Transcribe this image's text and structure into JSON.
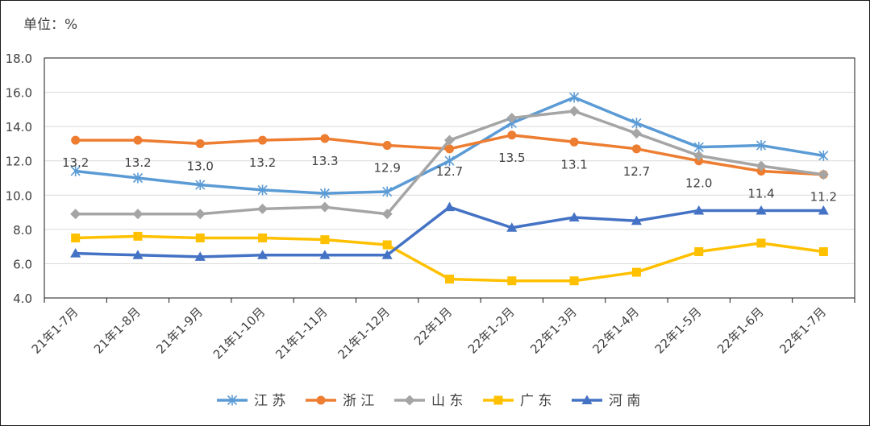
{
  "chart_data": {
    "type": "line",
    "unit_label": "单位：%",
    "categories": [
      "21年1-7月",
      "21年1-8月",
      "21年1-9月",
      "21年1-10月",
      "21年1-11月",
      "21年1-12月",
      "22年1月",
      "22年1-2月",
      "22年1-3月",
      "22年1-4月",
      "22年1-5月",
      "22年1-6月",
      "22年1-7月"
    ],
    "ylim": [
      4.0,
      18.0
    ],
    "yticks": [
      "4.0",
      "6.0",
      "8.0",
      "10.0",
      "12.0",
      "14.0",
      "16.0",
      "18.0"
    ],
    "grid": true,
    "legend_position": "bottom",
    "series": [
      {
        "name": "江 苏",
        "color": "#5b9bd5",
        "marker": "star",
        "values": [
          11.4,
          11.0,
          10.6,
          10.3,
          10.1,
          10.2,
          12.0,
          14.2,
          15.7,
          14.2,
          12.8,
          12.9,
          12.3
        ]
      },
      {
        "name": "浙 江",
        "color": "#ed7d31",
        "marker": "circle",
        "values": [
          13.2,
          13.2,
          13.0,
          13.2,
          13.3,
          12.9,
          12.7,
          13.5,
          13.1,
          12.7,
          12.0,
          11.4,
          11.2
        ],
        "labels": [
          "13.2",
          "13.2",
          "13.0",
          "13.2",
          "13.3",
          "12.9",
          "12.7",
          "13.5",
          "13.1",
          "12.7",
          "12.0",
          "11.4",
          "11.2"
        ]
      },
      {
        "name": "山 东",
        "color": "#a5a5a5",
        "marker": "diamond",
        "values": [
          8.9,
          8.9,
          8.9,
          9.2,
          9.3,
          8.9,
          13.2,
          14.5,
          14.9,
          13.6,
          12.3,
          11.7,
          11.2
        ]
      },
      {
        "name": "广 东",
        "color": "#ffc000",
        "marker": "square",
        "values": [
          7.5,
          7.6,
          7.5,
          7.5,
          7.4,
          7.1,
          5.1,
          5.0,
          5.0,
          5.5,
          6.7,
          7.2,
          6.7
        ]
      },
      {
        "name": "河 南",
        "color": "#4472c4",
        "marker": "triangle",
        "values": [
          6.6,
          6.5,
          6.4,
          6.5,
          6.5,
          6.5,
          9.3,
          8.1,
          8.7,
          8.5,
          9.1,
          9.1,
          9.1
        ]
      }
    ]
  }
}
